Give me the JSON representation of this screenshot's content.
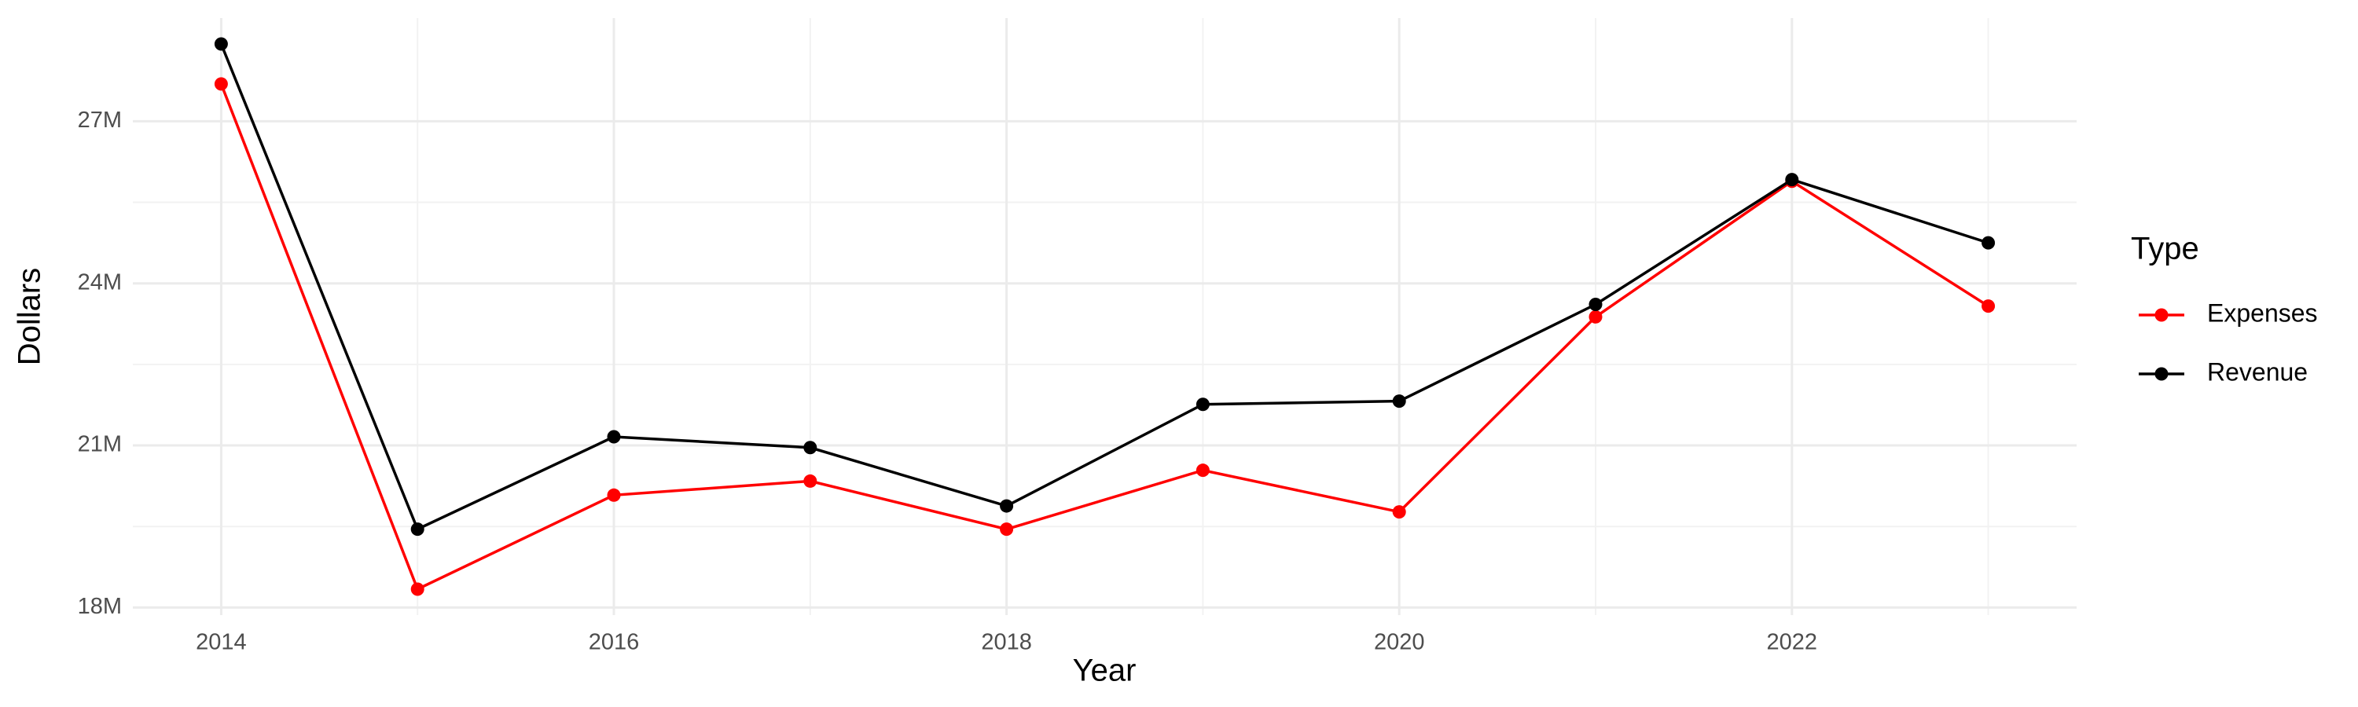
{
  "chart_data": {
    "type": "line",
    "x_label": "Year",
    "y_label": "Dollars",
    "legend_title": "Type",
    "x": [
      2014,
      2015,
      2016,
      2017,
      2018,
      2019,
      2020,
      2021,
      2022,
      2023
    ],
    "series": [
      {
        "name": "Expenses",
        "color": "#ff0000",
        "values": [
          27690000,
          18340000,
          20080000,
          20340000,
          19450000,
          20540000,
          19770000,
          23380000,
          25890000,
          23580000
        ]
      },
      {
        "name": "Revenue",
        "color": "#000000",
        "values": [
          28430000,
          19450000,
          21160000,
          20960000,
          19880000,
          21760000,
          21820000,
          23610000,
          25920000,
          24750000
        ]
      }
    ],
    "xlim": [
      2013.55,
      2023.45
    ],
    "xticks": [
      2014,
      2016,
      2018,
      2020,
      2022
    ],
    "ylim": [
      17860000,
      28910000
    ],
    "yticks": [
      {
        "value": 18000000,
        "label": "18M"
      },
      {
        "value": 21000000,
        "label": "21M"
      },
      {
        "value": 24000000,
        "label": "24M"
      },
      {
        "value": 27000000,
        "label": "27M"
      }
    ],
    "grid": true,
    "legend": "right"
  }
}
